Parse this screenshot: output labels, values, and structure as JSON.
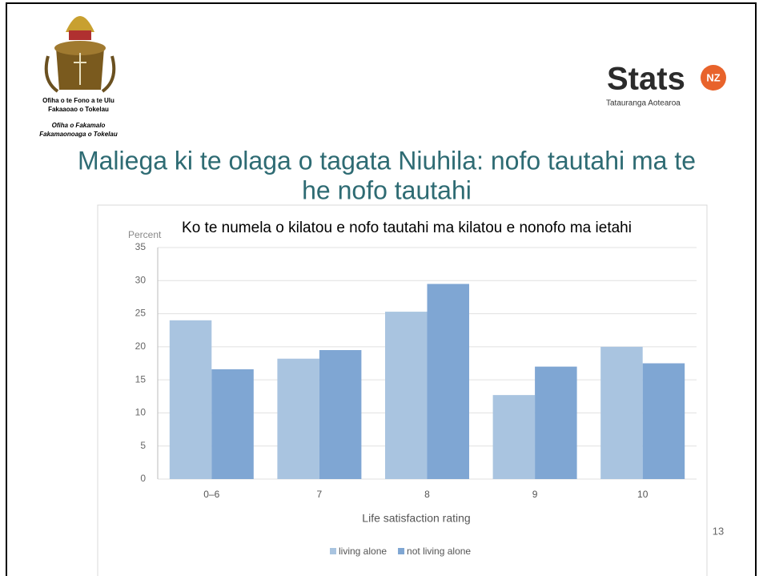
{
  "header": {
    "crest_text": [
      "Ofiha o te Fono a te Ulu",
      "Fakaaoao o Tokelau",
      "Ofiha o Fakamalo",
      "Fakamaonoaga o Tokelau"
    ],
    "logo_word": "Stats",
    "logo_badge": "NZ",
    "logo_sub": "Tatauranga Aotearoa",
    "title_lines": [
      "Maliega ki te olaga o tagata Niuhila: nofo tautahi ma te",
      "he nofo tautahi"
    ]
  },
  "page_number": "13",
  "chart_data": {
    "type": "bar",
    "title": "Ko te numela o kilatou e nofo tautahi ma kilatou e nonofo ma ietahi",
    "y_label": "Percent",
    "x_label": "Life satisfaction rating",
    "categories": [
      "0–6",
      "7",
      "8",
      "9",
      "10"
    ],
    "series": [
      {
        "name": "living alone",
        "color": "#a9c4e0",
        "values": [
          24,
          18.2,
          25.3,
          12.7,
          20
        ]
      },
      {
        "name": "not living alone",
        "color": "#7fa6d3",
        "values": [
          16.6,
          19.5,
          29.5,
          17,
          17.5
        ]
      }
    ],
    "ylim": [
      0,
      35
    ],
    "yticks": [
      0,
      5,
      10,
      15,
      20,
      25,
      30,
      35
    ],
    "grid": true,
    "legend": "bottom"
  }
}
